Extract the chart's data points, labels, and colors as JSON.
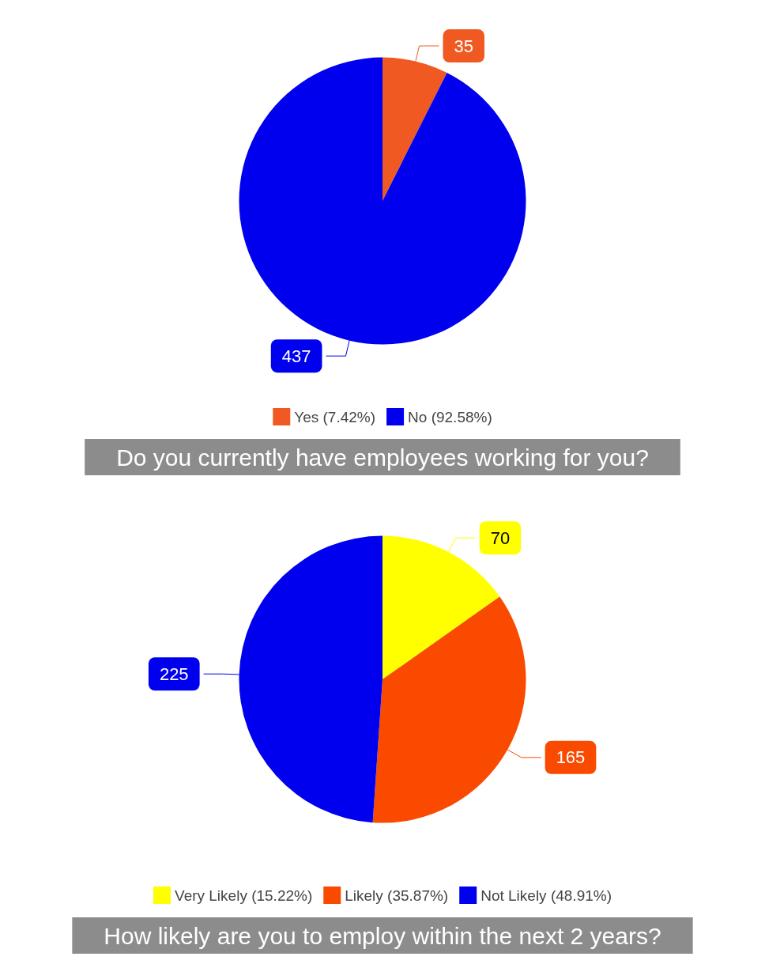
{
  "chart_data": [
    {
      "type": "pie",
      "title": "Do you currently have employees working for you?",
      "categories": [
        "Yes (7.42%)",
        "No (92.58%)"
      ],
      "values": [
        35,
        437
      ],
      "colors": [
        "#f05a22",
        "#0000ee"
      ],
      "data_labels": true,
      "legend": "bottom"
    },
    {
      "type": "pie",
      "title": "How likely are you to employ within the next 2 years?",
      "categories": [
        "Very Likely (15.22%)",
        "Likely (35.87%)",
        "Not Likely (48.91%)"
      ],
      "values": [
        70,
        165,
        225
      ],
      "colors": [
        "#ffff00",
        "#f94a00",
        "#0000ee"
      ],
      "data_labels": true,
      "legend": "bottom"
    }
  ]
}
